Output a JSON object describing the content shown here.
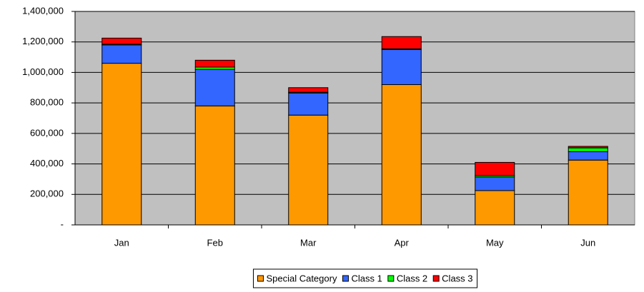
{
  "chart_data": {
    "type": "stacked_bar",
    "categories": [
      "Jan",
      "Feb",
      "Mar",
      "Apr",
      "May",
      "Jun"
    ],
    "series": [
      {
        "name": "Special Category",
        "color": "#ff9900",
        "values": [
          1060000,
          780000,
          720000,
          920000,
          225000,
          425000
        ]
      },
      {
        "name": "Class 1",
        "color": "#3366ff",
        "values": [
          120000,
          240000,
          145000,
          230000,
          90000,
          55000
        ]
      },
      {
        "name": "Class 2",
        "color": "#00ff00",
        "values": [
          5000,
          15000,
          5000,
          5000,
          10000,
          25000
        ]
      },
      {
        "name": "Class 3",
        "color": "#ff0000",
        "values": [
          40000,
          45000,
          30000,
          80000,
          85000,
          10000
        ]
      }
    ],
    "ylim": [
      0,
      1400000
    ],
    "yticks": [
      {
        "value": 0,
        "label": "-"
      },
      {
        "value": 200000,
        "label": "200,000"
      },
      {
        "value": 400000,
        "label": "400,000"
      },
      {
        "value": 600000,
        "label": "600,000"
      },
      {
        "value": 800000,
        "label": "800,000"
      },
      {
        "value": 1000000,
        "label": "1,000,000"
      },
      {
        "value": 1200000,
        "label": "1,200,000"
      },
      {
        "value": 1400000,
        "label": "1,400,000"
      }
    ],
    "grid": true,
    "legend": "bottom"
  }
}
